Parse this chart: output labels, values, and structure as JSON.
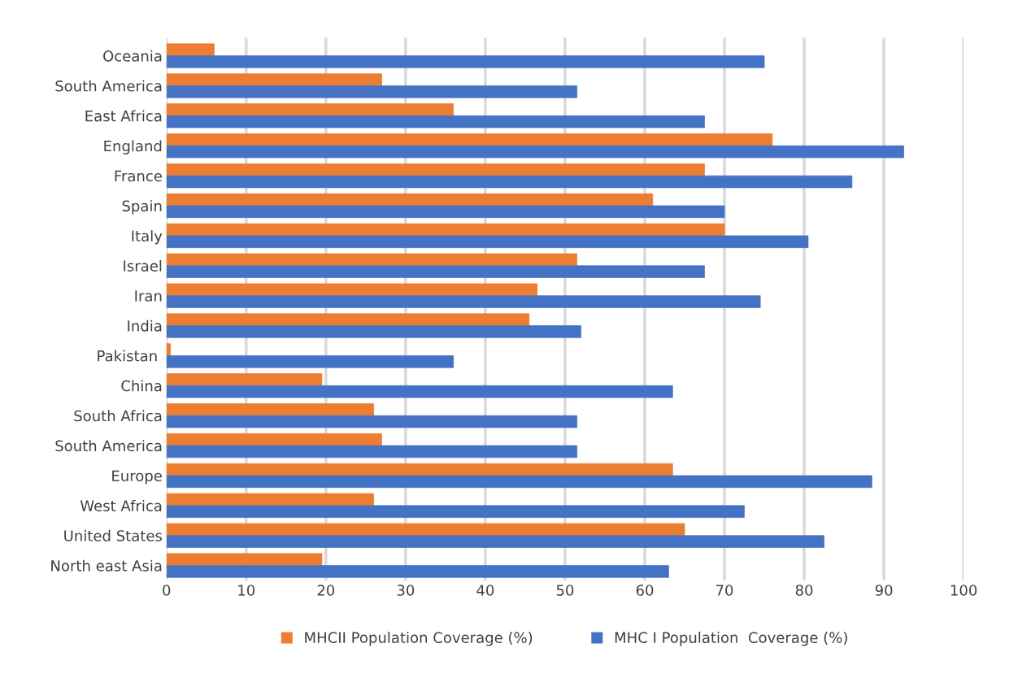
{
  "chart_data": {
    "type": "bar",
    "orientation": "horizontal",
    "categories": [
      "Oceania",
      "South America",
      "East Africa",
      "England",
      "France",
      "Spain",
      "Italy",
      "Israel",
      "Iran",
      "India",
      "Pakistan ",
      "China",
      "South Africa",
      "South America",
      "Europe",
      "West Africa",
      "United States",
      "North east Asia"
    ],
    "series": [
      {
        "name": "MHCII Population Coverage (%)",
        "color": "#ed7d31",
        "values": [
          6,
          27,
          36,
          76,
          67.5,
          61,
          70,
          51.5,
          46.5,
          45.5,
          0.5,
          19.5,
          26,
          27,
          63.5,
          26,
          65,
          19.5
        ]
      },
      {
        "name": "MHC I Population  Coverage (%)",
        "color": "#4472c4",
        "values": [
          75,
          51.5,
          67.5,
          92.5,
          86,
          70,
          80.5,
          67.5,
          74.5,
          52,
          36,
          63.5,
          51.5,
          51.5,
          88.5,
          72.5,
          82.5,
          63
        ]
      }
    ],
    "xlim": [
      0,
      100
    ],
    "xticks": [
      0,
      10,
      20,
      30,
      40,
      50,
      60,
      70,
      80,
      90,
      100
    ],
    "grid": "x",
    "legend": "bottom"
  }
}
